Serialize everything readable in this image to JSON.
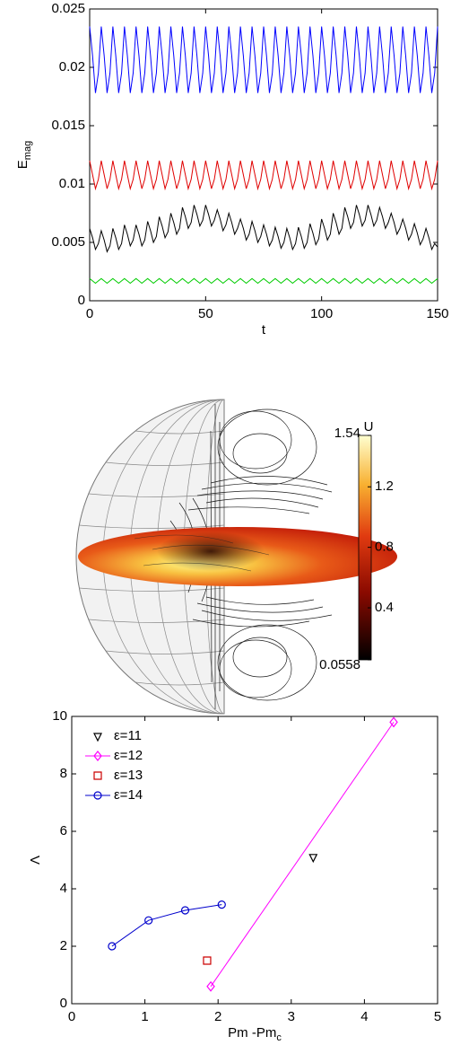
{
  "chart_data": [
    {
      "type": "line",
      "xlabel": "t",
      "ylabel": "E",
      "ylabel_sub": "mag",
      "xlim": [
        0,
        150
      ],
      "xticks": [
        0,
        50,
        100,
        150
      ],
      "ylim": [
        0,
        0.025
      ],
      "yticks": [
        0,
        0.005,
        0.01,
        0.015,
        0.02,
        0.025
      ],
      "x": [
        0,
        1.25,
        2.5,
        3.75,
        5,
        6.25,
        7.5,
        8.75,
        10,
        11.25,
        12.5,
        13.75,
        15,
        16.25,
        17.5,
        18.75,
        20,
        21.25,
        22.5,
        23.75,
        25,
        26.25,
        27.5,
        28.75,
        30,
        31.25,
        32.5,
        33.75,
        35,
        36.25,
        37.5,
        38.75,
        40,
        41.25,
        42.5,
        43.75,
        45,
        46.25,
        47.5,
        48.75,
        50,
        51.25,
        52.5,
        53.75,
        55,
        56.25,
        57.5,
        58.75,
        60,
        61.25,
        62.5,
        63.75,
        65,
        66.25,
        67.5,
        68.75,
        70,
        71.25,
        72.5,
        73.75,
        75,
        76.25,
        77.5,
        78.75,
        80,
        81.25,
        82.5,
        83.75,
        85,
        86.25,
        87.5,
        88.75,
        90,
        91.25,
        92.5,
        93.75,
        95,
        96.25,
        97.5,
        98.75,
        100,
        101.25,
        102.5,
        103.75,
        105,
        106.25,
        107.5,
        108.75,
        110,
        111.25,
        112.5,
        113.75,
        115,
        116.25,
        117.5,
        118.75,
        120,
        121.25,
        122.5,
        123.75,
        125,
        126.25,
        127.5,
        128.75,
        130,
        131.25,
        132.5,
        133.75,
        135,
        136.25,
        137.5,
        138.75,
        140,
        141.25,
        142.5,
        143.75,
        145,
        146.25,
        147.5,
        148.75,
        150
      ],
      "series": [
        {
          "color": "#0000ff",
          "values": [
            0.0235,
            0.021,
            0.0178,
            0.0195,
            0.0235,
            0.021,
            0.0178,
            0.0195,
            0.0235,
            0.021,
            0.0178,
            0.0195,
            0.0235,
            0.021,
            0.0178,
            0.0195,
            0.0235,
            0.021,
            0.0178,
            0.0195,
            0.0235,
            0.021,
            0.0178,
            0.0195,
            0.0235,
            0.021,
            0.0178,
            0.0195,
            0.0235,
            0.021,
            0.0178,
            0.0195,
            0.0235,
            0.021,
            0.0178,
            0.0195,
            0.0235,
            0.021,
            0.0178,
            0.0195,
            0.0235,
            0.021,
            0.0178,
            0.0195,
            0.0235,
            0.021,
            0.0178,
            0.0195,
            0.0235,
            0.021,
            0.0178,
            0.0195,
            0.0235,
            0.021,
            0.0178,
            0.0195,
            0.0235,
            0.021,
            0.0178,
            0.0195,
            0.0235,
            0.021,
            0.0178,
            0.0195,
            0.0235,
            0.021,
            0.0178,
            0.0195,
            0.0235,
            0.021,
            0.0178,
            0.0195,
            0.0235,
            0.021,
            0.0178,
            0.0195,
            0.0235,
            0.021,
            0.0178,
            0.0195,
            0.0235,
            0.021,
            0.0178,
            0.0195,
            0.0235,
            0.021,
            0.0178,
            0.0195,
            0.0235,
            0.021,
            0.0178,
            0.0195,
            0.0235,
            0.021,
            0.0178,
            0.0195,
            0.0235,
            0.021,
            0.0178,
            0.0195,
            0.0235,
            0.021,
            0.0178,
            0.0195,
            0.0235,
            0.021,
            0.0178,
            0.0195,
            0.0235,
            0.021,
            0.0178,
            0.0195,
            0.0235,
            0.021,
            0.0178,
            0.0195,
            0.0235,
            0.021,
            0.0178,
            0.0195,
            0.0235
          ]
        },
        {
          "color": "#e00000",
          "values": [
            0.012,
            0.0108,
            0.0096,
            0.0104,
            0.012,
            0.0108,
            0.0096,
            0.0104,
            0.012,
            0.0108,
            0.0096,
            0.0104,
            0.012,
            0.0108,
            0.0096,
            0.0104,
            0.012,
            0.0108,
            0.0096,
            0.0104,
            0.012,
            0.0108,
            0.0096,
            0.0104,
            0.012,
            0.0108,
            0.0096,
            0.0104,
            0.012,
            0.0108,
            0.0096,
            0.0104,
            0.012,
            0.0108,
            0.0096,
            0.0104,
            0.012,
            0.0108,
            0.0096,
            0.0104,
            0.012,
            0.0108,
            0.0096,
            0.0104,
            0.012,
            0.0108,
            0.0096,
            0.0104,
            0.012,
            0.0108,
            0.0096,
            0.0104,
            0.012,
            0.0108,
            0.0096,
            0.0104,
            0.012,
            0.0108,
            0.0096,
            0.0104,
            0.012,
            0.0108,
            0.0096,
            0.0104,
            0.012,
            0.0108,
            0.0096,
            0.0104,
            0.012,
            0.0108,
            0.0096,
            0.0104,
            0.012,
            0.0108,
            0.0096,
            0.0104,
            0.012,
            0.0108,
            0.0096,
            0.0104,
            0.012,
            0.0108,
            0.0096,
            0.0104,
            0.012,
            0.0108,
            0.0096,
            0.0104,
            0.012,
            0.0108,
            0.0096,
            0.0104,
            0.012,
            0.0108,
            0.0096,
            0.0104,
            0.012,
            0.0108,
            0.0096,
            0.0104,
            0.012,
            0.0108,
            0.0096,
            0.0104,
            0.012,
            0.0108,
            0.0096,
            0.0104,
            0.012,
            0.0108,
            0.0096,
            0.0104,
            0.012,
            0.0108,
            0.0096,
            0.0104,
            0.012,
            0.0108,
            0.0096,
            0.0104,
            0.012
          ]
        },
        {
          "color": "#000000",
          "values": [
            0.0062,
            0.0054,
            0.0044,
            0.0049,
            0.006,
            0.0052,
            0.0042,
            0.0047,
            0.0062,
            0.0054,
            0.0044,
            0.0049,
            0.0065,
            0.0057,
            0.0047,
            0.0052,
            0.0065,
            0.0057,
            0.0047,
            0.0052,
            0.0068,
            0.006,
            0.005,
            0.0055,
            0.0072,
            0.0064,
            0.0054,
            0.0059,
            0.0075,
            0.0067,
            0.0057,
            0.0062,
            0.008,
            0.0072,
            0.0062,
            0.0067,
            0.0082,
            0.0074,
            0.0064,
            0.0069,
            0.0082,
            0.0074,
            0.0064,
            0.0069,
            0.0078,
            0.007,
            0.006,
            0.0065,
            0.0075,
            0.0067,
            0.0057,
            0.0062,
            0.007,
            0.0062,
            0.0052,
            0.0057,
            0.0068,
            0.006,
            0.005,
            0.0055,
            0.0065,
            0.0057,
            0.0047,
            0.0052,
            0.0063,
            0.0055,
            0.0045,
            0.005,
            0.0062,
            0.0054,
            0.0044,
            0.0049,
            0.0063,
            0.0055,
            0.0045,
            0.005,
            0.0066,
            0.0058,
            0.0048,
            0.0053,
            0.007,
            0.0062,
            0.0052,
            0.0057,
            0.0075,
            0.0067,
            0.0057,
            0.0062,
            0.008,
            0.0072,
            0.0062,
            0.0067,
            0.0082,
            0.0074,
            0.0064,
            0.0069,
            0.0082,
            0.0074,
            0.0064,
            0.0069,
            0.008,
            0.0072,
            0.0062,
            0.0067,
            0.0075,
            0.0067,
            0.0057,
            0.0062,
            0.007,
            0.0062,
            0.0052,
            0.0057,
            0.0066,
            0.0058,
            0.0048,
            0.0053,
            0.0062,
            0.0054,
            0.0044,
            0.0049,
            0.0046
          ]
        },
        {
          "color": "#00cc00",
          "values": [
            0.0019,
            0.0017,
            0.0015,
            0.0017,
            0.0019,
            0.0017,
            0.0015,
            0.0017,
            0.0019,
            0.0017,
            0.0015,
            0.0017,
            0.0019,
            0.0017,
            0.0015,
            0.0017,
            0.0019,
            0.0017,
            0.0015,
            0.0017,
            0.0019,
            0.0017,
            0.0015,
            0.0017,
            0.0019,
            0.0017,
            0.0015,
            0.0017,
            0.0019,
            0.0017,
            0.0015,
            0.0017,
            0.0019,
            0.0017,
            0.0015,
            0.0017,
            0.0019,
            0.0017,
            0.0015,
            0.0017,
            0.0019,
            0.0017,
            0.0015,
            0.0017,
            0.0019,
            0.0017,
            0.0015,
            0.0017,
            0.0019,
            0.0017,
            0.0015,
            0.0017,
            0.0019,
            0.0017,
            0.0015,
            0.0017,
            0.0019,
            0.0017,
            0.0015,
            0.0017,
            0.0019,
            0.0017,
            0.0015,
            0.0017,
            0.0019,
            0.0017,
            0.0015,
            0.0017,
            0.0019,
            0.0017,
            0.0015,
            0.0017,
            0.0019,
            0.0017,
            0.0015,
            0.0017,
            0.0019,
            0.0017,
            0.0015,
            0.0017,
            0.0019,
            0.0017,
            0.0015,
            0.0017,
            0.0019,
            0.0017,
            0.0015,
            0.0017,
            0.0019,
            0.0017,
            0.0015,
            0.0017,
            0.0019,
            0.0017,
            0.0015,
            0.0017,
            0.0019,
            0.0017,
            0.0015,
            0.0017,
            0.0019,
            0.0017,
            0.0015,
            0.0017,
            0.0019,
            0.0017,
            0.0015,
            0.0017,
            0.0019,
            0.0017,
            0.0015,
            0.0017,
            0.0019,
            0.0017,
            0.0015,
            0.0017,
            0.0019,
            0.0017,
            0.0015,
            0.0017,
            0.0019
          ]
        }
      ]
    },
    {
      "type": "colorbar",
      "title": "U",
      "clim": [
        0.0558,
        1.54
      ],
      "ticks": [
        1.54,
        1.2,
        0.8,
        0.4,
        0.0558
      ]
    },
    {
      "type": "scatter",
      "xlabel": "Pm -Pm",
      "xlabel_sub": "c",
      "ylabel": "Λ",
      "xlim": [
        0,
        5
      ],
      "xticks": [
        0,
        1,
        2,
        3,
        4,
        5
      ],
      "ylim": [
        0,
        10
      ],
      "yticks": [
        0,
        2,
        4,
        6,
        8,
        10
      ],
      "legend": "upper left",
      "series": [
        {
          "name": "ε=11",
          "color": "#000000",
          "marker": "triangle-down",
          "line": false,
          "x": [
            3.3
          ],
          "y": [
            5.1
          ]
        },
        {
          "name": "ε=12",
          "color": "#ff00ff",
          "marker": "diamond",
          "line": true,
          "x": [
            1.9,
            4.4
          ],
          "y": [
            0.6,
            9.8
          ]
        },
        {
          "name": "ε=13",
          "color": "#cc0000",
          "marker": "square",
          "line": false,
          "x": [
            1.85
          ],
          "y": [
            1.5
          ]
        },
        {
          "name": "ε=14",
          "color": "#0000cc",
          "marker": "circle",
          "line": true,
          "x": [
            0.55,
            1.05,
            1.55,
            2.05
          ],
          "y": [
            2.0,
            2.9,
            3.25,
            3.45
          ]
        }
      ]
    }
  ]
}
